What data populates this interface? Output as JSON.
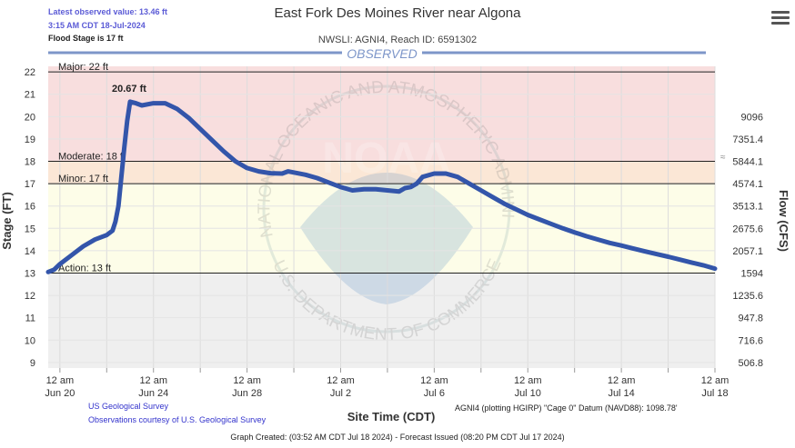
{
  "header": {
    "latest_value": "Latest observed value: 13.46 ft",
    "latest_time": "3:15 AM CDT 18-Jul-2024",
    "flood_stage": "Flood Stage is 17 ft",
    "title": "East Fork Des Moines River near Algona",
    "subtitle": "NWSLI: AGNI4, Reach ID: 6591302"
  },
  "menu_icon": "hamburger-menu-icon",
  "credits": {
    "usgs": "US Geological Survey",
    "obs": "Observations courtesy of U.S. Geological Survey"
  },
  "datum": "AGNI4 (plotting HGIRP) \"Cage 0\" Datum (NAVD88): 1098.78'",
  "footer": "Graph Created: (03:52 AM CDT Jul 18 2024) - Forecast Issued (08:20 PM CDT Jul 17 2024)",
  "watermark": {
    "text_top": "NATIONAL OCEANIC AND ATMOSPHERIC ADMINISTRATION",
    "text_bottom": "U.S. DEPARTMENT OF COMMERCE",
    "logo": "NOAA"
  },
  "chart_data": {
    "type": "line",
    "xlabel": "Site Time (CDT)",
    "ylabel": "Stage (FT)",
    "y2label": "Flow (CFS)",
    "series_label": "OBSERVED",
    "x_range": [
      "2024-06-19T12:00",
      "2024-07-18T00:00"
    ],
    "ylim": [
      9,
      22
    ],
    "y_ticks": [
      9,
      10,
      11,
      12,
      13,
      14,
      15,
      16,
      17,
      18,
      19,
      20,
      21,
      22
    ],
    "x_ticks": [
      {
        "date": "2024-06-20T00:00",
        "line1": "12 am",
        "line2": "Jun 20"
      },
      {
        "date": "2024-06-22T00:00",
        "line1": "",
        "line2": ""
      },
      {
        "date": "2024-06-24T00:00",
        "line1": "12 am",
        "line2": "Jun 24"
      },
      {
        "date": "2024-06-26T00:00",
        "line1": "",
        "line2": ""
      },
      {
        "date": "2024-06-28T00:00",
        "line1": "12 am",
        "line2": "Jun 28"
      },
      {
        "date": "2024-06-30T00:00",
        "line1": "",
        "line2": ""
      },
      {
        "date": "2024-07-02T00:00",
        "line1": "12 am",
        "line2": "Jul 2"
      },
      {
        "date": "2024-07-04T00:00",
        "line1": "",
        "line2": ""
      },
      {
        "date": "2024-07-06T00:00",
        "line1": "12 am",
        "line2": "Jul 6"
      },
      {
        "date": "2024-07-08T00:00",
        "line1": "",
        "line2": ""
      },
      {
        "date": "2024-07-10T00:00",
        "line1": "12 am",
        "line2": "Jul 10"
      },
      {
        "date": "2024-07-12T00:00",
        "line1": "",
        "line2": ""
      },
      {
        "date": "2024-07-14T00:00",
        "line1": "12 am",
        "line2": "Jul 14"
      },
      {
        "date": "2024-07-16T00:00",
        "line1": "",
        "line2": ""
      },
      {
        "date": "2024-07-18T00:00",
        "line1": "12 am",
        "line2": "Jul 18"
      }
    ],
    "flow_ticks": [
      {
        "stage": 20,
        "flow": "9096"
      },
      {
        "stage": 19,
        "flow": "7351.4"
      },
      {
        "stage": 18,
        "flow": "5844.1"
      },
      {
        "stage": 17,
        "flow": "4574.1"
      },
      {
        "stage": 16,
        "flow": "3513.1"
      },
      {
        "stage": 15,
        "flow": "2675.6"
      },
      {
        "stage": 14,
        "flow": "2057.1"
      },
      {
        "stage": 13,
        "flow": "1594"
      },
      {
        "stage": 12,
        "flow": "1235.6"
      },
      {
        "stage": 11,
        "flow": "947.8"
      },
      {
        "stage": 10,
        "flow": "716.6"
      },
      {
        "stage": 9,
        "flow": "506.8"
      }
    ],
    "flood_categories": [
      {
        "name": "Major",
        "label": "Major: 22 ft",
        "stage": 22,
        "color": "#f8dede"
      },
      {
        "name": "Moderate",
        "label": "Moderate: 18 ft",
        "stage": 18,
        "color": "#fbe7d6"
      },
      {
        "name": "Minor",
        "label": "Minor: 17 ft",
        "stage": 17,
        "color": "#fdfbd6"
      },
      {
        "name": "Action",
        "label": "Action: 13 ft",
        "stage": 13,
        "color": "#fdfde8"
      }
    ],
    "below_action_color": "#efefef",
    "peak_label": "20.67 ft",
    "peak": {
      "date": "2024-06-23T00:00",
      "stage": 20.67
    },
    "line_color": "#3355aa",
    "points": [
      [
        "2024-06-19T12:00",
        13.05
      ],
      [
        "2024-06-19T18:00",
        13.15
      ],
      [
        "2024-06-20T00:00",
        13.4
      ],
      [
        "2024-06-20T12:00",
        13.8
      ],
      [
        "2024-06-21T00:00",
        14.2
      ],
      [
        "2024-06-21T12:00",
        14.5
      ],
      [
        "2024-06-22T00:00",
        14.7
      ],
      [
        "2024-06-22T06:00",
        14.9
      ],
      [
        "2024-06-22T09:00",
        15.3
      ],
      [
        "2024-06-22T12:00",
        16.0
      ],
      [
        "2024-06-22T15:00",
        17.3
      ],
      [
        "2024-06-22T18:00",
        18.6
      ],
      [
        "2024-06-22T21:00",
        19.8
      ],
      [
        "2024-06-23T00:00",
        20.67
      ],
      [
        "2024-06-23T06:00",
        20.6
      ],
      [
        "2024-06-23T12:00",
        20.5
      ],
      [
        "2024-06-24T00:00",
        20.6
      ],
      [
        "2024-06-24T12:00",
        20.6
      ],
      [
        "2024-06-25T00:00",
        20.35
      ],
      [
        "2024-06-25T12:00",
        19.95
      ],
      [
        "2024-06-26T00:00",
        19.45
      ],
      [
        "2024-06-26T12:00",
        18.95
      ],
      [
        "2024-06-27T00:00",
        18.45
      ],
      [
        "2024-06-27T12:00",
        18.0
      ],
      [
        "2024-06-28T00:00",
        17.7
      ],
      [
        "2024-06-28T12:00",
        17.55
      ],
      [
        "2024-06-29T00:00",
        17.47
      ],
      [
        "2024-06-29T12:00",
        17.45
      ],
      [
        "2024-06-29T18:00",
        17.55
      ],
      [
        "2024-06-30T00:00",
        17.5
      ],
      [
        "2024-06-30T12:00",
        17.4
      ],
      [
        "2024-07-01T00:00",
        17.25
      ],
      [
        "2024-07-01T12:00",
        17.05
      ],
      [
        "2024-07-02T00:00",
        16.85
      ],
      [
        "2024-07-02T12:00",
        16.7
      ],
      [
        "2024-07-03T00:00",
        16.75
      ],
      [
        "2024-07-03T12:00",
        16.75
      ],
      [
        "2024-07-04T00:00",
        16.7
      ],
      [
        "2024-07-04T12:00",
        16.65
      ],
      [
        "2024-07-04T18:00",
        16.8
      ],
      [
        "2024-07-05T00:00",
        16.85
      ],
      [
        "2024-07-05T06:00",
        17.0
      ],
      [
        "2024-07-05T12:00",
        17.3
      ],
      [
        "2024-07-06T00:00",
        17.45
      ],
      [
        "2024-07-06T12:00",
        17.45
      ],
      [
        "2024-07-07T00:00",
        17.3
      ],
      [
        "2024-07-07T12:00",
        17.0
      ],
      [
        "2024-07-08T00:00",
        16.7
      ],
      [
        "2024-07-08T12:00",
        16.4
      ],
      [
        "2024-07-09T00:00",
        16.1
      ],
      [
        "2024-07-09T12:00",
        15.85
      ],
      [
        "2024-07-10T00:00",
        15.6
      ],
      [
        "2024-07-10T12:00",
        15.4
      ],
      [
        "2024-07-11T00:00",
        15.2
      ],
      [
        "2024-07-11T12:00",
        15.0
      ],
      [
        "2024-07-12T00:00",
        14.82
      ],
      [
        "2024-07-12T12:00",
        14.65
      ],
      [
        "2024-07-13T00:00",
        14.5
      ],
      [
        "2024-07-13T12:00",
        14.35
      ],
      [
        "2024-07-14T00:00",
        14.23
      ],
      [
        "2024-07-14T12:00",
        14.1
      ],
      [
        "2024-07-15T00:00",
        13.97
      ],
      [
        "2024-07-15T12:00",
        13.85
      ],
      [
        "2024-07-16T00:00",
        13.73
      ],
      [
        "2024-07-16T12:00",
        13.6
      ],
      [
        "2024-07-17T00:00",
        13.47
      ],
      [
        "2024-07-17T12:00",
        13.35
      ],
      [
        "2024-07-18T00:00",
        13.2
      ]
    ]
  }
}
